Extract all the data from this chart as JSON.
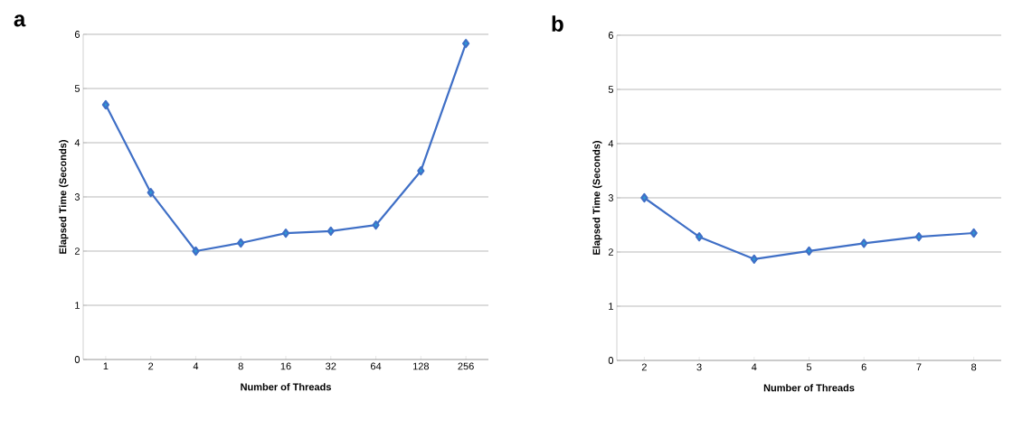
{
  "chart_data": [
    {
      "type": "line",
      "title": "a",
      "xlabel": "Number of Threads",
      "ylabel": "Elapsed Time (Seconds)",
      "categories": [
        "1",
        "2",
        "4",
        "8",
        "16",
        "32",
        "64",
        "128",
        "256"
      ],
      "series": [
        {
          "color": "#3f6fc6",
          "values": [
            4.7,
            3.08,
            2.0,
            2.15,
            2.33,
            2.37,
            2.48,
            3.48,
            5.83
          ]
        }
      ],
      "ylim": [
        0,
        6
      ],
      "yticks": [
        0,
        1,
        2,
        3,
        4,
        5,
        6
      ],
      "grid": "y",
      "marker": "diamond",
      "line_style": "solid"
    },
    {
      "type": "line",
      "title": "b",
      "xlabel": "Number of Threads",
      "ylabel": "Elapsed Time (Seconds)",
      "categories": [
        "2",
        "3",
        "4",
        "5",
        "6",
        "7",
        "8"
      ],
      "series": [
        {
          "color": "#3f6fc6",
          "values": [
            3.0,
            2.28,
            1.87,
            2.02,
            2.16,
            2.28,
            2.35
          ]
        }
      ],
      "ylim": [
        0,
        6
      ],
      "yticks": [
        0,
        1,
        2,
        3,
        4,
        5,
        6
      ],
      "grid": "y",
      "marker": "diamond",
      "line_style": "solid"
    }
  ]
}
